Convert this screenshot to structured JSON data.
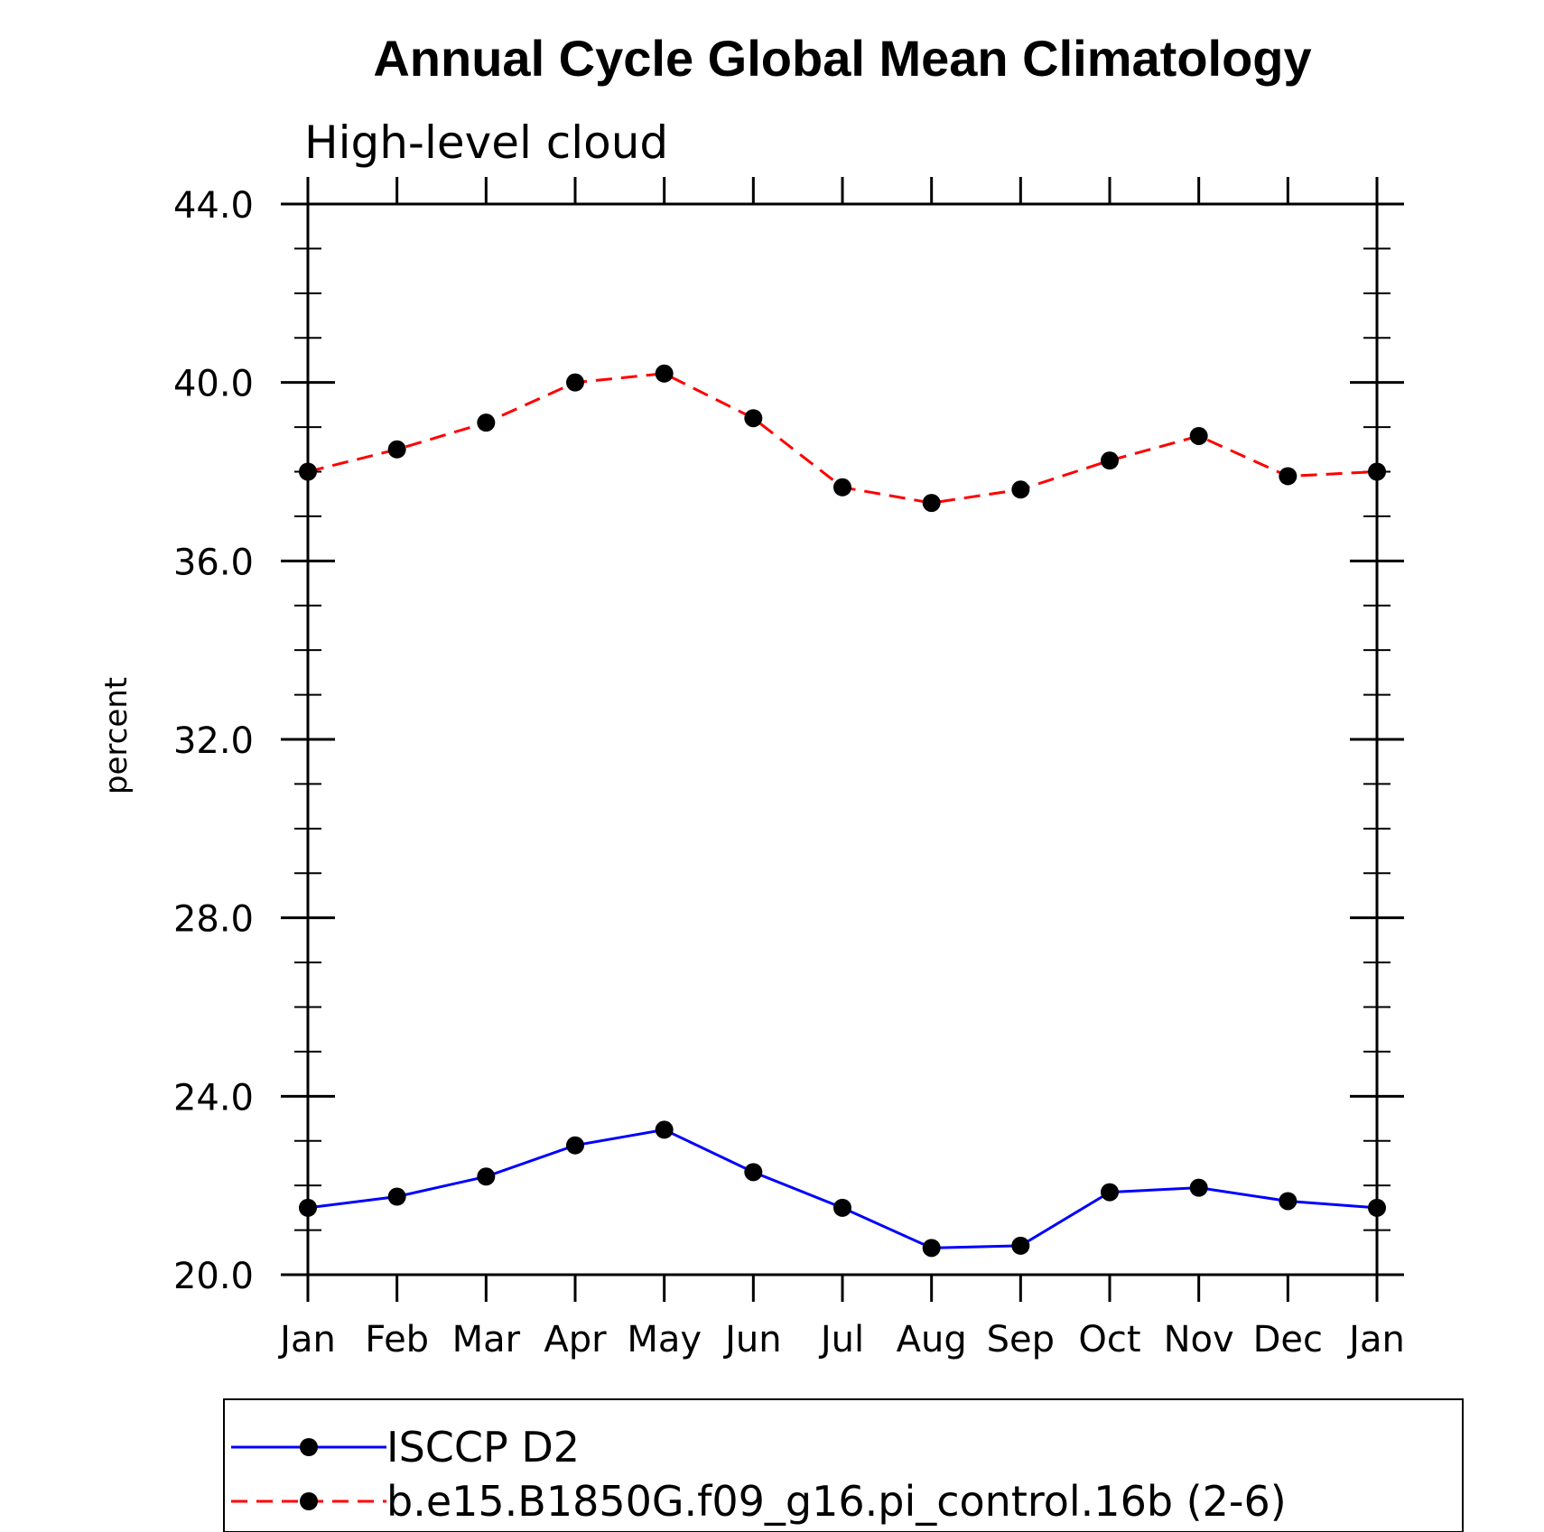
{
  "chart_data": {
    "type": "line",
    "title": "Annual Cycle Global Mean Climatology",
    "subtitle": "High-level cloud",
    "ylabel": "percent",
    "xlabel": "",
    "categories": [
      "Jan",
      "Feb",
      "Mar",
      "Apr",
      "May",
      "Jun",
      "Jul",
      "Aug",
      "Sep",
      "Oct",
      "Nov",
      "Dec",
      "Jan"
    ],
    "ylim": [
      20,
      44
    ],
    "yticks": [
      "20.0",
      "24.0",
      "28.0",
      "32.0",
      "36.0",
      "40.0",
      "44.0"
    ],
    "grid": false,
    "legend_position": "bottom",
    "series": [
      {
        "name": "ISCCP D2",
        "color": "#0000ff",
        "line_style": "solid",
        "marker": "filled-circle",
        "values": [
          21.5,
          21.75,
          22.2,
          22.9,
          23.25,
          22.3,
          21.5,
          20.6,
          20.65,
          21.85,
          21.95,
          21.65,
          21.5
        ]
      },
      {
        "name": "b.e15.B1850G.f09_g16.pi_control.16b (2-6)",
        "color": "#ff0000",
        "line_style": "dashed",
        "marker": "filled-circle",
        "values": [
          38.0,
          38.5,
          39.1,
          40.0,
          40.2,
          39.2,
          37.65,
          37.3,
          37.6,
          38.25,
          38.8,
          37.9,
          38.0
        ]
      }
    ]
  }
}
